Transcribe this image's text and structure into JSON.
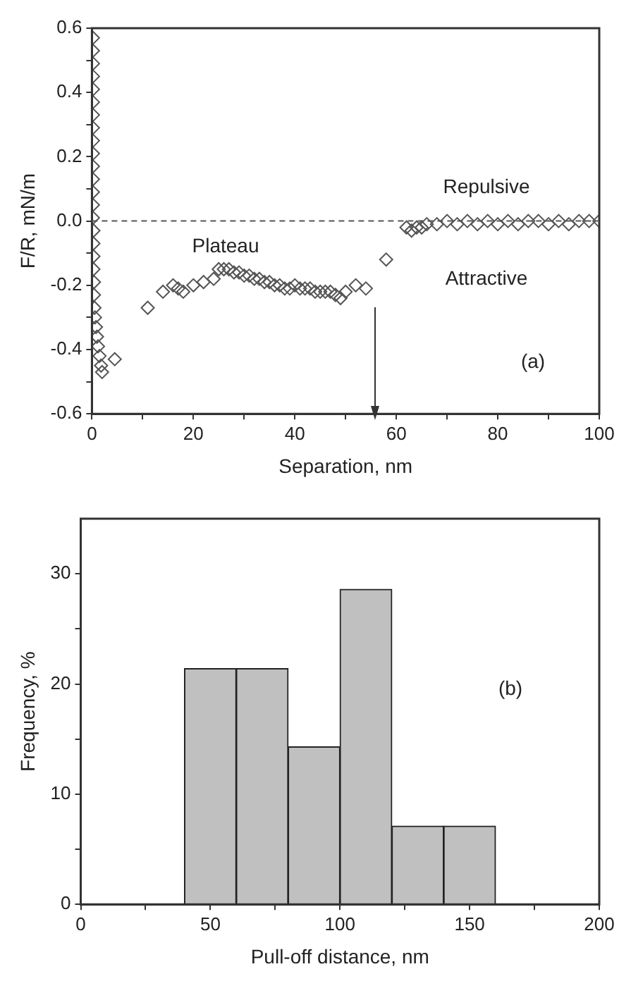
{
  "chart_data": [
    {
      "type": "scatter",
      "xlabel": "Separation, nm",
      "ylabel": "F/R, mN/m",
      "marker": "diamond",
      "grid": false,
      "legend": false,
      "xlim": [
        0,
        100
      ],
      "xticks": [
        0,
        {
          "value": 10,
          "label": null
        },
        20,
        {
          "value": 30,
          "label": null
        },
        40,
        {
          "value": 50,
          "label": null
        },
        60,
        {
          "value": 70,
          "label": null
        },
        80,
        {
          "value": 90,
          "label": null
        },
        100
      ],
      "ylim": [
        -0.6,
        0.6
      ],
      "yticks": [
        -0.6,
        {
          "value": -0.5,
          "label": null
        },
        -0.4,
        {
          "value": -0.3,
          "label": null
        },
        -0.2,
        {
          "value": -0.1,
          "label": null
        },
        {
          "value": 0,
          "label": "0.0"
        },
        {
          "value": 0.1,
          "label": null
        },
        0.2,
        {
          "value": 0.3,
          "label": null
        },
        0.4,
        {
          "value": 0.5,
          "label": null
        },
        0.6
      ],
      "series": [
        {
          "color": "#555555",
          "x": [
            0.2,
            0.2,
            0.2,
            0.2,
            0.2,
            0.2,
            0.2,
            0.2,
            0.2,
            0.2,
            0.2,
            0.2,
            0.2,
            0.2,
            0.2,
            0.3,
            0.3,
            0.3,
            0.3,
            0.4,
            0.4,
            0.5,
            0.6,
            0.8,
            1.0,
            1.2,
            1.5,
            1.8,
            2.0,
            4.5,
            11,
            14,
            16,
            17,
            18,
            20,
            22,
            24,
            25,
            26,
            27,
            28,
            29,
            30,
            31,
            32,
            33,
            34,
            35,
            36,
            37,
            38,
            39,
            40,
            41,
            42,
            43,
            44,
            45,
            46,
            47,
            48,
            49,
            50,
            52,
            54,
            58,
            62,
            63,
            64,
            65,
            66,
            68,
            70,
            72,
            74,
            76,
            78,
            80,
            82,
            84,
            86,
            88,
            90,
            92,
            94,
            96,
            98,
            100
          ],
          "values": [
            0.57,
            0.53,
            0.49,
            0.45,
            0.41,
            0.37,
            0.33,
            0.29,
            0.25,
            0.21,
            0.17,
            0.13,
            0.09,
            0.05,
            0.01,
            -0.03,
            -0.07,
            -0.11,
            -0.15,
            -0.19,
            -0.23,
            -0.27,
            -0.3,
            -0.33,
            -0.36,
            -0.39,
            -0.42,
            -0.45,
            -0.47,
            -0.43,
            -0.27,
            -0.22,
            -0.2,
            -0.21,
            -0.22,
            -0.2,
            -0.19,
            -0.18,
            -0.15,
            -0.15,
            -0.15,
            -0.16,
            -0.16,
            -0.17,
            -0.17,
            -0.18,
            -0.18,
            -0.19,
            -0.19,
            -0.2,
            -0.2,
            -0.21,
            -0.21,
            -0.2,
            -0.21,
            -0.21,
            -0.21,
            -0.22,
            -0.22,
            -0.22,
            -0.22,
            -0.23,
            -0.24,
            -0.22,
            -0.2,
            -0.21,
            -0.12,
            -0.02,
            -0.03,
            -0.02,
            -0.02,
            -0.01,
            -0.01,
            0,
            -0.01,
            0,
            -0.01,
            0,
            -0.01,
            0,
            -0.01,
            0,
            0,
            -0.01,
            0,
            -0.01,
            0,
            0,
            0
          ]
        }
      ],
      "ref_lines": [
        {
          "axis": "y",
          "value": 0,
          "color": "#555555",
          "line_style": "dashed"
        }
      ],
      "annotations": [
        "Repulsive",
        "Attractive",
        "Plateau",
        "(a)"
      ]
    },
    {
      "type": "histogram",
      "xlabel": "Pull-off distance, nm",
      "ylabel": "Frequency, %",
      "grid": false,
      "legend": false,
      "color": "#c0c0c0",
      "bins": [
        40,
        60,
        80,
        100,
        120,
        140,
        160
      ],
      "values": [
        21.4,
        21.4,
        14.3,
        28.6,
        7.1,
        7.1
      ],
      "xlim": [
        0,
        200
      ],
      "xticks": [
        0,
        {
          "value": 25,
          "label": null
        },
        50,
        {
          "value": 75,
          "label": null
        },
        100,
        {
          "value": 125,
          "label": null
        },
        150,
        {
          "value": 175,
          "label": null
        },
        200
      ],
      "ylim": [
        0,
        35
      ],
      "yticks": [
        0,
        {
          "value": 5,
          "label": null
        },
        10,
        {
          "value": 15,
          "label": null
        },
        20,
        {
          "value": 25,
          "label": null
        },
        30
      ],
      "annotations": [
        "(b)"
      ]
    }
  ]
}
